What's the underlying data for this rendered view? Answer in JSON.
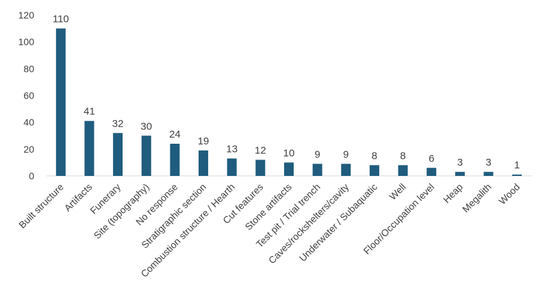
{
  "chart_data": {
    "type": "bar",
    "categories": [
      "Built structure",
      "Artifacts",
      "Funerary",
      "Site (topography)",
      "No response",
      "Stratigraphic section",
      "Combustion structure / Hearth",
      "Cut features",
      "Stone artifacts",
      "Test pit / Trial trench",
      "Caves/rockshelters/cavity",
      "Underwater / Subaquatic",
      "Well",
      "Floor/Occupation level",
      "Heap",
      "Megalith",
      "Wood"
    ],
    "values": [
      110,
      41,
      32,
      30,
      24,
      19,
      13,
      12,
      10,
      9,
      9,
      8,
      8,
      6,
      3,
      3,
      1
    ],
    "ylim": [
      0,
      120
    ],
    "yticks": [
      0,
      20,
      40,
      60,
      80,
      100,
      120
    ],
    "grid": false,
    "bar_color": "#1f5c7e",
    "axis_color": "#d9d9d9",
    "text_color": "#404040"
  }
}
